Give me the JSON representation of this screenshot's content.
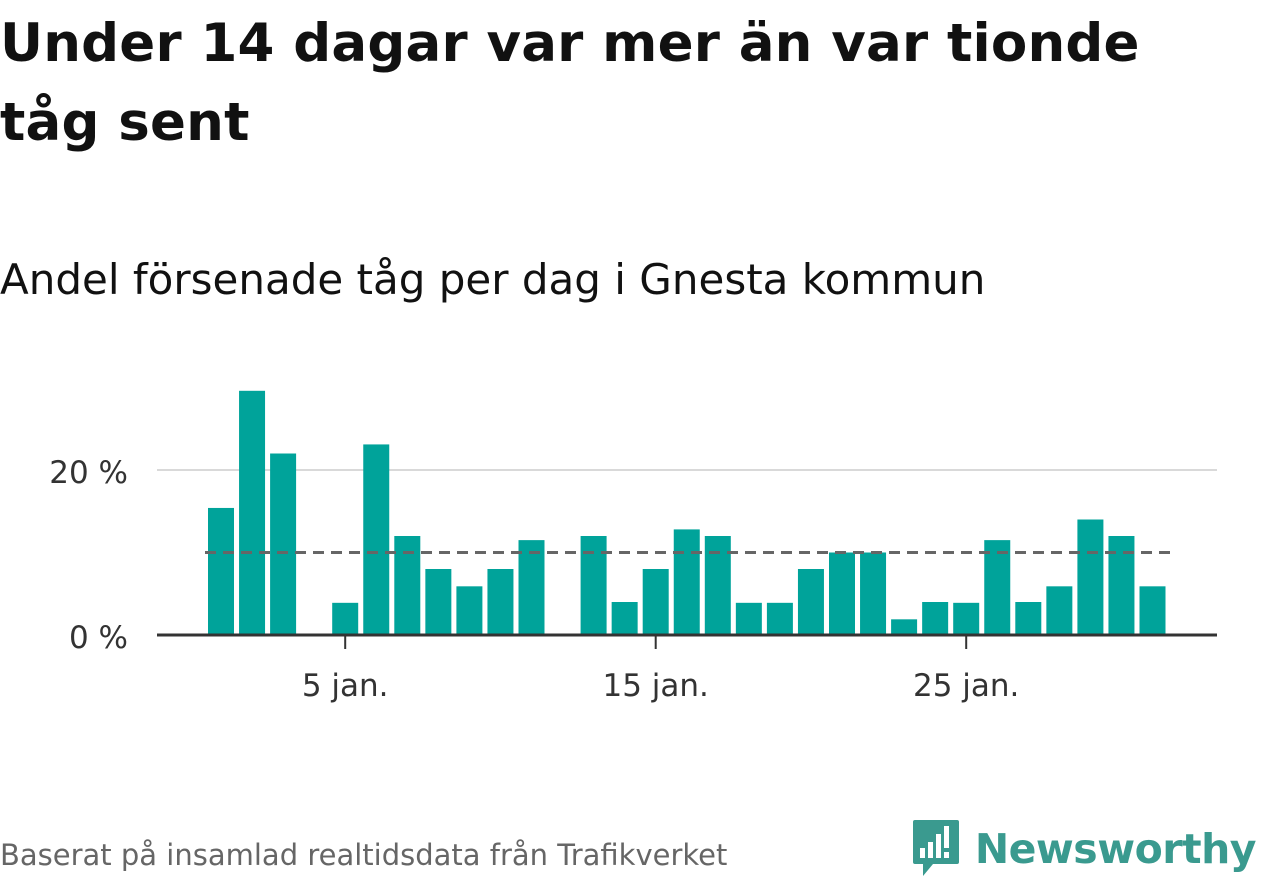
{
  "title": "Under 14 dagar var mer än var tionde tåg sent",
  "subtitle": "Andel försenade tåg per dag i Gnesta kommun",
  "source": "Baserat på insamlad realtidsdata från Trafikverket",
  "brand": {
    "name": "Newsworthy",
    "color": "#3a9a8f"
  },
  "colors": {
    "bar": "#00a39a",
    "reference_line": "#666666",
    "grid": "#d9d9d9",
    "axis": "#333333"
  },
  "chart_data": {
    "type": "bar",
    "x": [
      "1 jan.",
      "2 jan.",
      "3 jan.",
      "4 jan.",
      "5 jan.",
      "6 jan.",
      "7 jan.",
      "8 jan.",
      "9 jan.",
      "10 jan.",
      "11 jan.",
      "12 jan.",
      "13 jan.",
      "14 jan.",
      "15 jan.",
      "16 jan.",
      "17 jan.",
      "18 jan.",
      "19 jan.",
      "20 jan.",
      "21 jan.",
      "22 jan.",
      "23 jan.",
      "24 jan.",
      "25 jan.",
      "26 jan.",
      "27 jan.",
      "28 jan.",
      "29 jan.",
      "30 jan.",
      "31 jan."
    ],
    "values": [
      15.4,
      29.6,
      22.0,
      null,
      3.9,
      23.1,
      12.0,
      8.0,
      5.9,
      8.0,
      11.5,
      null,
      12.0,
      4.0,
      8.0,
      12.8,
      12.0,
      3.9,
      3.9,
      8.0,
      10.0,
      10.0,
      1.9,
      4.0,
      3.9,
      11.5,
      4.0,
      5.9,
      14.0,
      12.0,
      5.9
    ],
    "reference_line": 10,
    "ylim": [
      0,
      30
    ],
    "y_ticks": [
      0,
      20
    ],
    "y_tick_labels": [
      "0 %",
      "20 %"
    ],
    "x_ticks": [
      5,
      15,
      25
    ],
    "x_tick_labels": [
      "5 jan.",
      "15 jan.",
      "25 jan."
    ],
    "grid": true
  }
}
